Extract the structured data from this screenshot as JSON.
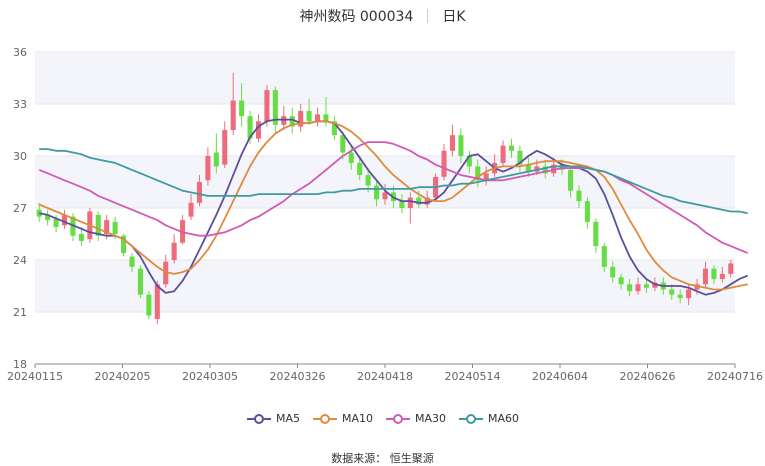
{
  "title": {
    "name": "神州数码 000034",
    "period": "日K"
  },
  "source": "数据来源： 恒生聚源",
  "chart_data": {
    "type": "candlestick",
    "y_ticks": [
      "18",
      "21",
      "24",
      "27",
      "30",
      "33",
      "36"
    ],
    "ylim": [
      18,
      36
    ],
    "x_tick_labels": [
      "20240115",
      "20240205",
      "20240305",
      "20240326",
      "20240418",
      "20240514",
      "20240604",
      "20240626",
      "20240716"
    ],
    "up_color": "#ee6b7b",
    "down_color": "#66dd44",
    "candles": [
      {
        "o": 26.9,
        "c": 26.5,
        "h": 27.3,
        "l": 26.2
      },
      {
        "o": 26.6,
        "c": 26.3,
        "h": 26.9,
        "l": 26.0
      },
      {
        "o": 26.4,
        "c": 25.9,
        "h": 26.6,
        "l": 25.6
      },
      {
        "o": 26.0,
        "c": 26.6,
        "h": 26.9,
        "l": 25.8
      },
      {
        "o": 26.5,
        "c": 25.4,
        "h": 26.7,
        "l": 25.1
      },
      {
        "o": 25.5,
        "c": 25.1,
        "h": 25.9,
        "l": 24.8
      },
      {
        "o": 25.2,
        "c": 26.8,
        "h": 27.0,
        "l": 25.0
      },
      {
        "o": 26.6,
        "c": 25.4,
        "h": 26.8,
        "l": 25.1
      },
      {
        "o": 25.5,
        "c": 26.3,
        "h": 26.6,
        "l": 25.2
      },
      {
        "o": 26.2,
        "c": 25.5,
        "h": 26.5,
        "l": 25.2
      },
      {
        "o": 25.4,
        "c": 24.4,
        "h": 25.5,
        "l": 24.2
      },
      {
        "o": 24.2,
        "c": 23.6,
        "h": 24.4,
        "l": 23.3
      },
      {
        "o": 23.5,
        "c": 22.0,
        "h": 23.7,
        "l": 21.8
      },
      {
        "o": 22.0,
        "c": 20.8,
        "h": 22.2,
        "l": 20.6
      },
      {
        "o": 20.6,
        "c": 22.6,
        "h": 22.8,
        "l": 20.3
      },
      {
        "o": 22.6,
        "c": 23.9,
        "h": 24.3,
        "l": 22.4
      },
      {
        "o": 24.0,
        "c": 25.0,
        "h": 25.5,
        "l": 23.8
      },
      {
        "o": 25.0,
        "c": 26.3,
        "h": 26.6,
        "l": 24.9
      },
      {
        "o": 26.5,
        "c": 27.3,
        "h": 27.8,
        "l": 26.3
      },
      {
        "o": 27.3,
        "c": 28.5,
        "h": 28.9,
        "l": 27.1
      },
      {
        "o": 28.6,
        "c": 30.0,
        "h": 30.5,
        "l": 28.3
      },
      {
        "o": 30.2,
        "c": 29.4,
        "h": 31.3,
        "l": 29.0
      },
      {
        "o": 29.5,
        "c": 31.5,
        "h": 32.0,
        "l": 29.3
      },
      {
        "o": 31.5,
        "c": 33.2,
        "h": 34.8,
        "l": 31.2
      },
      {
        "o": 33.2,
        "c": 32.3,
        "h": 34.2,
        "l": 31.7
      },
      {
        "o": 32.3,
        "c": 31.0,
        "h": 32.6,
        "l": 30.7
      },
      {
        "o": 31.0,
        "c": 32.0,
        "h": 32.4,
        "l": 30.8
      },
      {
        "o": 32.0,
        "c": 33.8,
        "h": 34.1,
        "l": 31.7
      },
      {
        "o": 33.8,
        "c": 31.8,
        "h": 34.0,
        "l": 31.3
      },
      {
        "o": 31.8,
        "c": 32.3,
        "h": 32.9,
        "l": 31.5
      },
      {
        "o": 32.3,
        "c": 31.7,
        "h": 32.8,
        "l": 31.3
      },
      {
        "o": 31.7,
        "c": 32.6,
        "h": 33.0,
        "l": 31.4
      },
      {
        "o": 32.6,
        "c": 32.0,
        "h": 33.3,
        "l": 31.8
      },
      {
        "o": 32.0,
        "c": 32.4,
        "h": 32.8,
        "l": 31.7
      },
      {
        "o": 32.4,
        "c": 32.0,
        "h": 33.4,
        "l": 31.7
      },
      {
        "o": 32.0,
        "c": 31.2,
        "h": 32.3,
        "l": 30.9
      },
      {
        "o": 31.2,
        "c": 30.2,
        "h": 31.4,
        "l": 29.8
      },
      {
        "o": 30.2,
        "c": 29.6,
        "h": 30.6,
        "l": 29.2
      },
      {
        "o": 29.6,
        "c": 28.9,
        "h": 30.0,
        "l": 28.6
      },
      {
        "o": 28.9,
        "c": 28.3,
        "h": 29.3,
        "l": 27.9
      },
      {
        "o": 28.3,
        "c": 27.5,
        "h": 28.6,
        "l": 27.1
      },
      {
        "o": 27.5,
        "c": 27.9,
        "h": 28.4,
        "l": 27.2
      },
      {
        "o": 27.9,
        "c": 27.4,
        "h": 28.3,
        "l": 27.0
      },
      {
        "o": 27.4,
        "c": 27.0,
        "h": 27.8,
        "l": 26.7
      },
      {
        "o": 27.0,
        "c": 27.6,
        "h": 27.9,
        "l": 26.1
      },
      {
        "o": 27.6,
        "c": 27.2,
        "h": 28.0,
        "l": 27.0
      },
      {
        "o": 27.2,
        "c": 27.6,
        "h": 28.0,
        "l": 27.0
      },
      {
        "o": 27.6,
        "c": 28.8,
        "h": 29.0,
        "l": 27.4
      },
      {
        "o": 28.8,
        "c": 30.3,
        "h": 30.7,
        "l": 28.6
      },
      {
        "o": 30.3,
        "c": 31.2,
        "h": 31.8,
        "l": 30.0
      },
      {
        "o": 31.2,
        "c": 30.0,
        "h": 31.6,
        "l": 29.6
      },
      {
        "o": 30.0,
        "c": 29.4,
        "h": 30.3,
        "l": 29.0
      },
      {
        "o": 29.4,
        "c": 28.6,
        "h": 29.8,
        "l": 28.2
      },
      {
        "o": 28.6,
        "c": 29.0,
        "h": 29.4,
        "l": 28.3
      },
      {
        "o": 29.0,
        "c": 29.6,
        "h": 30.1,
        "l": 28.8
      },
      {
        "o": 29.6,
        "c": 30.6,
        "h": 30.9,
        "l": 29.4
      },
      {
        "o": 30.6,
        "c": 30.3,
        "h": 31.0,
        "l": 29.9
      },
      {
        "o": 30.3,
        "c": 29.5,
        "h": 30.6,
        "l": 29.1
      },
      {
        "o": 29.5,
        "c": 29.1,
        "h": 29.9,
        "l": 28.8
      },
      {
        "o": 29.1,
        "c": 29.4,
        "h": 29.8,
        "l": 28.9
      },
      {
        "o": 29.4,
        "c": 29.0,
        "h": 29.8,
        "l": 28.7
      },
      {
        "o": 29.0,
        "c": 29.5,
        "h": 29.9,
        "l": 28.8
      },
      {
        "o": 29.5,
        "c": 29.2,
        "h": 29.8,
        "l": 28.9
      },
      {
        "o": 29.2,
        "c": 28.0,
        "h": 29.4,
        "l": 27.6
      },
      {
        "o": 28.0,
        "c": 27.4,
        "h": 28.3,
        "l": 27.0
      },
      {
        "o": 27.4,
        "c": 26.2,
        "h": 27.6,
        "l": 25.8
      },
      {
        "o": 26.2,
        "c": 24.8,
        "h": 26.4,
        "l": 24.4
      },
      {
        "o": 24.8,
        "c": 23.6,
        "h": 25.0,
        "l": 23.3
      },
      {
        "o": 23.6,
        "c": 23.0,
        "h": 23.9,
        "l": 22.7
      },
      {
        "o": 23.0,
        "c": 22.6,
        "h": 23.2,
        "l": 22.3
      },
      {
        "o": 22.6,
        "c": 22.2,
        "h": 22.9,
        "l": 21.9
      },
      {
        "o": 22.2,
        "c": 22.6,
        "h": 23.0,
        "l": 22.0
      },
      {
        "o": 22.6,
        "c": 22.4,
        "h": 22.9,
        "l": 22.1
      },
      {
        "o": 22.4,
        "c": 22.7,
        "h": 23.0,
        "l": 22.2
      },
      {
        "o": 22.7,
        "c": 22.3,
        "h": 23.0,
        "l": 22.0
      },
      {
        "o": 22.3,
        "c": 22.0,
        "h": 22.6,
        "l": 21.7
      },
      {
        "o": 22.0,
        "c": 21.8,
        "h": 22.3,
        "l": 21.5
      },
      {
        "o": 21.8,
        "c": 22.3,
        "h": 22.6,
        "l": 21.4
      },
      {
        "o": 22.3,
        "c": 22.6,
        "h": 22.9,
        "l": 22.0
      },
      {
        "o": 22.6,
        "c": 23.5,
        "h": 23.9,
        "l": 22.4
      },
      {
        "o": 23.5,
        "c": 22.9,
        "h": 23.7,
        "l": 22.6
      },
      {
        "o": 22.9,
        "c": 23.2,
        "h": 23.6,
        "l": 22.7
      },
      {
        "o": 23.2,
        "c": 23.8,
        "h": 24.0,
        "l": 23.0
      }
    ],
    "series": [
      {
        "name": "MA5",
        "color": "#5b4e9c",
        "values": [
          26.7,
          26.6,
          26.4,
          26.2,
          26.0,
          25.8,
          25.6,
          25.5,
          25.4,
          25.4,
          25.2,
          24.8,
          24.2,
          23.3,
          22.5,
          22.1,
          22.2,
          22.8,
          23.6,
          24.6,
          25.6,
          26.6,
          27.7,
          28.9,
          30.1,
          31.1,
          31.7,
          32.0,
          32.1,
          32.1,
          32.1,
          31.9,
          31.9,
          32.0,
          32.0,
          31.9,
          31.3,
          30.6,
          29.9,
          29.2,
          28.6,
          28.0,
          27.6,
          27.4,
          27.4,
          27.3,
          27.3,
          27.5,
          27.9,
          28.6,
          29.3,
          30.0,
          30.1,
          29.7,
          29.3,
          29.1,
          29.3,
          29.6,
          30.0,
          30.3,
          30.1,
          29.8,
          29.5,
          29.4,
          29.3,
          29.1,
          28.7,
          27.8,
          26.6,
          25.3,
          24.2,
          23.4,
          22.9,
          22.6,
          22.5,
          22.5,
          22.5,
          22.4,
          22.2,
          22.0,
          22.1,
          22.3,
          22.6,
          22.9,
          23.1
        ]
      },
      {
        "name": "MA10",
        "color": "#e08a3c",
        "values": [
          27.2,
          27.0,
          26.8,
          26.6,
          26.4,
          26.2,
          26.0,
          25.8,
          25.6,
          25.4,
          25.2,
          24.8,
          24.4,
          24.0,
          23.6,
          23.3,
          23.2,
          23.3,
          23.5,
          24.0,
          24.6,
          25.4,
          26.4,
          27.4,
          28.4,
          29.4,
          30.2,
          30.8,
          31.3,
          31.6,
          31.8,
          31.9,
          31.9,
          32.0,
          32.0,
          31.9,
          31.7,
          31.4,
          31.0,
          30.5,
          30.0,
          29.4,
          28.9,
          28.5,
          28.1,
          27.8,
          27.5,
          27.4,
          27.4,
          27.6,
          28.0,
          28.4,
          28.8,
          29.1,
          29.3,
          29.4,
          29.4,
          29.4,
          29.5,
          29.6,
          29.7,
          29.7,
          29.7,
          29.6,
          29.5,
          29.4,
          29.2,
          28.8,
          28.1,
          27.2,
          26.3,
          25.5,
          24.6,
          23.9,
          23.4,
          23.0,
          22.8,
          22.6,
          22.5,
          22.4,
          22.3,
          22.3,
          22.4,
          22.5,
          22.6
        ]
      },
      {
        "name": "MA30",
        "color": "#d15ab4",
        "values": [
          29.2,
          29.0,
          28.8,
          28.6,
          28.4,
          28.2,
          28.0,
          27.7,
          27.5,
          27.3,
          27.1,
          26.9,
          26.7,
          26.5,
          26.3,
          26.0,
          25.8,
          25.6,
          25.5,
          25.4,
          25.4,
          25.5,
          25.6,
          25.8,
          26.0,
          26.3,
          26.5,
          26.8,
          27.1,
          27.4,
          27.8,
          28.1,
          28.4,
          28.8,
          29.2,
          29.6,
          30.0,
          30.3,
          30.6,
          30.8,
          30.8,
          30.8,
          30.7,
          30.5,
          30.3,
          30.0,
          29.8,
          29.5,
          29.3,
          29.1,
          28.9,
          28.8,
          28.7,
          28.6,
          28.6,
          28.6,
          28.7,
          28.8,
          28.9,
          29.0,
          29.1,
          29.2,
          29.3,
          29.3,
          29.3,
          29.3,
          29.2,
          29.1,
          28.9,
          28.6,
          28.4,
          28.1,
          27.8,
          27.5,
          27.2,
          26.9,
          26.6,
          26.3,
          26.0,
          25.6,
          25.3,
          25.0,
          24.8,
          24.6,
          24.4
        ]
      },
      {
        "name": "MA60",
        "color": "#3f9aa0",
        "values": [
          30.4,
          30.4,
          30.3,
          30.3,
          30.2,
          30.1,
          29.9,
          29.8,
          29.7,
          29.6,
          29.4,
          29.2,
          29.0,
          28.8,
          28.6,
          28.4,
          28.2,
          28.0,
          27.9,
          27.8,
          27.7,
          27.7,
          27.7,
          27.7,
          27.7,
          27.7,
          27.8,
          27.8,
          27.8,
          27.8,
          27.8,
          27.8,
          27.8,
          27.8,
          27.9,
          27.9,
          28.0,
          28.0,
          28.1,
          28.1,
          28.1,
          28.1,
          28.1,
          28.1,
          28.1,
          28.2,
          28.2,
          28.2,
          28.3,
          28.3,
          28.4,
          28.4,
          28.5,
          28.6,
          28.7,
          28.8,
          28.9,
          29.0,
          29.1,
          29.2,
          29.3,
          29.4,
          29.4,
          29.4,
          29.4,
          29.3,
          29.2,
          29.1,
          28.9,
          28.7,
          28.5,
          28.3,
          28.1,
          27.9,
          27.7,
          27.6,
          27.4,
          27.3,
          27.2,
          27.1,
          27.0,
          26.9,
          26.8,
          26.8,
          26.7
        ]
      }
    ],
    "legend_position": "bottom",
    "grid": true
  }
}
